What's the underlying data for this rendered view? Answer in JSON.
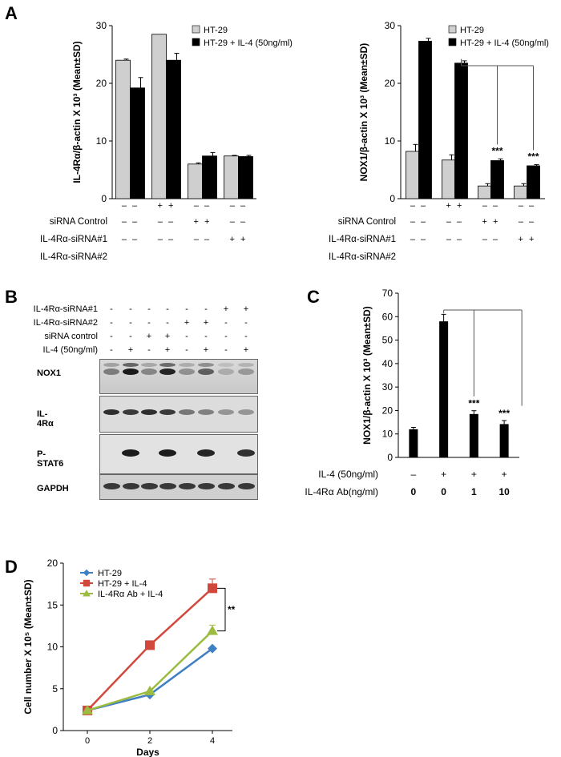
{
  "panels": {
    "A": "A",
    "B": "B",
    "C": "C",
    "D": "D"
  },
  "colors": {
    "light": "#cfcfcf",
    "dark": "#000000",
    "hatch": "#444444",
    "blue": "#3f7fc4",
    "red": "#d2483d",
    "green": "#9bbb41"
  },
  "chart_data": [
    {
      "type": "bar",
      "panel": "A-left",
      "ylabel": "IL-4Rα/β-actin X 10³ (Mean±SD)",
      "ylim": [
        0,
        30
      ],
      "yticks": [
        "0",
        "10",
        "20",
        "30"
      ],
      "series": [
        {
          "name": "HT-29",
          "values": [
            24.0,
            28.5,
            6.0,
            7.4
          ],
          "errors": [
            0.2,
            0,
            0.2,
            0.1
          ]
        },
        {
          "name": "HT-29 + IL-4 (50ng/ml)",
          "values": [
            19.2,
            24.0,
            7.4,
            7.3
          ],
          "errors": [
            1.8,
            1.2,
            0.6,
            0.2
          ]
        }
      ],
      "row_labels": [
        "siRNA Control",
        "IL-4Rα-siRNA#1",
        "IL-4Rα-siRNA#2"
      ],
      "marks": [
        [
          "– –",
          "– –",
          "– –"
        ],
        [
          "+ +",
          "– –",
          "– –"
        ],
        [
          "– –",
          "+ +",
          "– –"
        ],
        [
          "– –",
          "– –",
          "+ +"
        ]
      ]
    },
    {
      "type": "bar",
      "panel": "A-right",
      "ylabel": "NOX1/β-actin X 10³ (Mean±SD)",
      "ylim": [
        0,
        30
      ],
      "yticks": [
        "0",
        "10",
        "20",
        "30"
      ],
      "series": [
        {
          "name": "HT-29",
          "values": [
            8.2,
            6.7,
            2.2,
            2.2
          ],
          "errors": [
            1.2,
            0.9,
            0.4,
            0.4
          ]
        },
        {
          "name": "HT-29 + IL-4 (50ng/ml)",
          "values": [
            27.3,
            23.5,
            6.6,
            5.7
          ],
          "errors": [
            0.5,
            0.4,
            0.3,
            0.2
          ]
        }
      ],
      "significance": [
        "",
        "",
        "***",
        "***"
      ],
      "row_labels": [
        "siRNA Control",
        "IL-4Rα-siRNA#1",
        "IL-4Rα-siRNA#2"
      ],
      "marks": [
        [
          "– –",
          "– –",
          "– –"
        ],
        [
          "+ +",
          "– –",
          "– –"
        ],
        [
          "– –",
          "+ +",
          "– –"
        ],
        [
          "– –",
          "– –",
          "+ +"
        ]
      ]
    },
    {
      "type": "bar",
      "panel": "C",
      "ylabel": "NOX1/β-actin X 10³ (Mean±SD)",
      "ylim": [
        0,
        70
      ],
      "yticks": [
        "0",
        "10",
        "20",
        "30",
        "40",
        "50",
        "60",
        "70"
      ],
      "values": [
        12,
        58,
        18.5,
        14.2
      ],
      "errors": [
        0.8,
        3,
        1.4,
        1.5
      ],
      "significance": [
        "",
        "",
        "***",
        "***"
      ],
      "row_labels": [
        "IL-4 (50ng/ml)",
        "IL-4Rα Ab(ng/ml)"
      ],
      "marks": [
        [
          "–",
          "0"
        ],
        [
          "+",
          "0"
        ],
        [
          "+",
          "1"
        ],
        [
          "+",
          "10"
        ]
      ]
    },
    {
      "type": "line",
      "panel": "D",
      "xlabel": "Days",
      "ylabel": "Cell number X 10⁵ (Mean±SD)",
      "x": [
        0,
        2,
        4
      ],
      "xticks": [
        "0",
        "2",
        "4"
      ],
      "ylim": [
        0,
        20
      ],
      "yticks": [
        "0",
        "5",
        "10",
        "15",
        "20"
      ],
      "series": [
        {
          "name": "HT-29",
          "values": [
            2.4,
            4.3,
            9.8
          ],
          "errors": [
            0,
            0,
            0.1
          ]
        },
        {
          "name": "HT-29 + IL-4",
          "values": [
            2.4,
            10.2,
            17
          ],
          "errors": [
            0,
            0,
            1.1
          ]
        },
        {
          "name": "IL-4Rα Ab + IL-4",
          "values": [
            2.4,
            4.7,
            11.9
          ],
          "errors": [
            0,
            0,
            0.7
          ]
        }
      ],
      "significance": "**"
    }
  ],
  "blot": {
    "row_labels": [
      "IL-4Rα-siRNA#1",
      "IL-4Rα-siRNA#2",
      "siRNA control",
      "IL-4 (50ng/ml)"
    ],
    "marks": [
      [
        "-",
        "-",
        "-",
        "-",
        "-",
        "-",
        "+",
        "+"
      ],
      [
        "-",
        "-",
        "-",
        "-",
        "+",
        "+",
        "-",
        "-"
      ],
      [
        "-",
        "-",
        "+",
        "+",
        "-",
        "-",
        "-",
        "-"
      ],
      [
        "-",
        "+",
        "-",
        "+",
        "-",
        "+",
        "-",
        "+"
      ]
    ],
    "proteins": [
      "NOX1",
      "IL-4Rα",
      "P-STAT6",
      "GAPDH"
    ]
  }
}
